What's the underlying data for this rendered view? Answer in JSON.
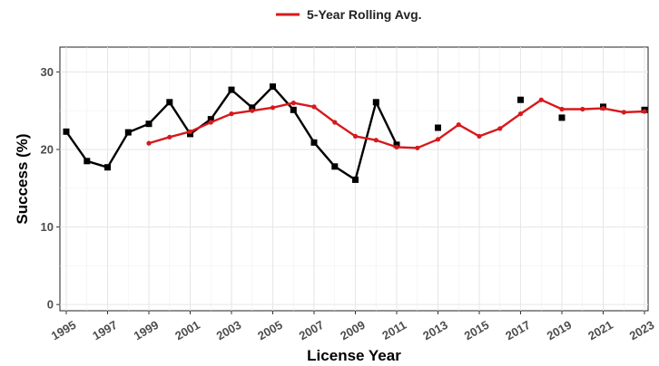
{
  "chart_data": {
    "type": "line",
    "xlabel": "License Year",
    "ylabel": "Success (%)",
    "xlim": [
      1995,
      2023
    ],
    "ylim": [
      0,
      32
    ],
    "x_ticks": [
      "1995",
      "1997",
      "1999",
      "2001",
      "2003",
      "2005",
      "2007",
      "2009",
      "2011",
      "2013",
      "2015",
      "2017",
      "2019",
      "2021",
      "2023"
    ],
    "y_ticks": [
      "0",
      "10",
      "20",
      "30"
    ],
    "grid": true,
    "legend_position": "top",
    "series": [
      {
        "key": "annual",
        "color": "#000000",
        "style": "line-with-square-markers",
        "x": [
          1995,
          1996,
          1997,
          1998,
          1999,
          2000,
          2001,
          2002,
          2003,
          2004,
          2005,
          2006,
          2007,
          2008,
          2009,
          2010,
          2011,
          2013,
          2017,
          2019,
          2021,
          2023
        ],
        "y": [
          22.3,
          18.5,
          17.7,
          22.2,
          23.3,
          26.1,
          22.0,
          23.9,
          27.7,
          25.4,
          28.1,
          25.1,
          20.9,
          17.8,
          16.1,
          26.1,
          20.6,
          22.8,
          26.4,
          24.1,
          25.5,
          25.1
        ],
        "line_segments": [
          [
            1995,
            2011
          ]
        ]
      },
      {
        "key": "rolling",
        "name": "5-Year Rolling Avg.",
        "color": "#d7191c",
        "style": "line-with-dot-markers",
        "x": [
          1999,
          2000,
          2001,
          2002,
          2003,
          2004,
          2005,
          2006,
          2007,
          2008,
          2009,
          2010,
          2011,
          2012,
          2013,
          2014,
          2015,
          2016,
          2017,
          2018,
          2019,
          2020,
          2021,
          2022,
          2023
        ],
        "y": [
          20.8,
          21.6,
          22.3,
          23.5,
          24.6,
          25.0,
          25.4,
          26.0,
          25.5,
          23.5,
          21.7,
          21.2,
          20.3,
          20.2,
          21.3,
          23.2,
          21.7,
          22.7,
          24.6,
          26.4,
          25.2,
          25.2,
          25.3,
          24.8,
          24.9
        ]
      }
    ],
    "legend": [
      {
        "label": "5-Year Rolling Avg.",
        "color": "#d7191c"
      }
    ]
  }
}
